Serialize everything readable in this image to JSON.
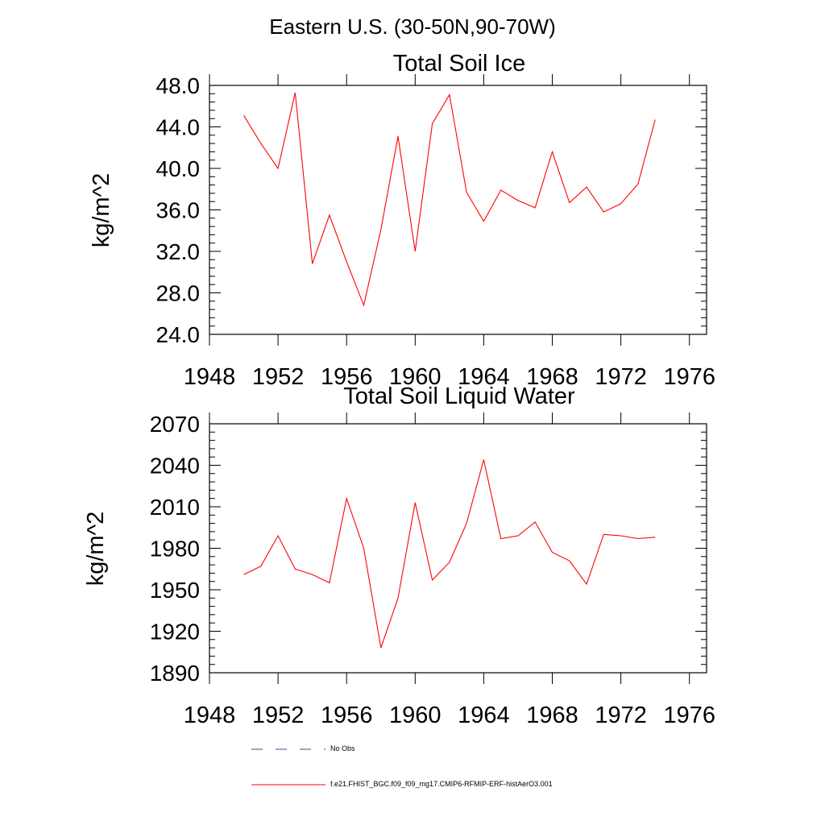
{
  "main_title": "Eastern U.S. (30-50N,90-70W)",
  "chart_data": [
    {
      "type": "line",
      "title": "Total Soil Ice",
      "ylabel": "kg/m^2",
      "xlabel": "",
      "xlim": [
        1948,
        1977
      ],
      "ylim": [
        24,
        48
      ],
      "xticks": [
        "1948",
        "1952",
        "1956",
        "1960",
        "1964",
        "1968",
        "1972",
        "1976"
      ],
      "xtick_values": [
        1948,
        1952,
        1956,
        1960,
        1964,
        1968,
        1972,
        1976
      ],
      "yticks": [
        "24.0",
        "28.0",
        "32.0",
        "36.0",
        "40.0",
        "44.0",
        "48.0"
      ],
      "ytick_values": [
        24,
        28,
        32,
        36,
        40,
        44,
        48
      ],
      "series": [
        {
          "name": "f.e21.FHIST_BGC.f09_f09_mg17.CMIP6-RFMIP-ERF-histAerO3.001",
          "color": "#ff0000",
          "x": [
            1950,
            1951,
            1952,
            1953,
            1954,
            1955,
            1956,
            1957,
            1958,
            1959,
            1960,
            1961,
            1962,
            1963,
            1964,
            1965,
            1966,
            1967,
            1968,
            1969,
            1970,
            1971,
            1972,
            1973,
            1974
          ],
          "values": [
            45.1,
            42.4,
            40.0,
            47.3,
            30.8,
            35.5,
            31.0,
            26.8,
            34.1,
            43.1,
            32.0,
            44.3,
            47.1,
            37.7,
            34.9,
            37.9,
            36.9,
            36.2,
            41.6,
            36.7,
            38.2,
            35.8,
            36.6,
            38.5,
            44.7
          ]
        }
      ]
    },
    {
      "type": "line",
      "title": "Total Soil Liquid Water",
      "ylabel": "kg/m^2",
      "xlabel": "",
      "xlim": [
        1948,
        1977
      ],
      "ylim": [
        1890,
        2070
      ],
      "xticks": [
        "1948",
        "1952",
        "1956",
        "1960",
        "1964",
        "1968",
        "1972",
        "1976"
      ],
      "xtick_values": [
        1948,
        1952,
        1956,
        1960,
        1964,
        1968,
        1972,
        1976
      ],
      "yticks": [
        "1890",
        "1920",
        "1950",
        "1980",
        "2010",
        "2040",
        "2070"
      ],
      "ytick_values": [
        1890,
        1920,
        1950,
        1980,
        2010,
        2040,
        2070
      ],
      "series": [
        {
          "name": "f.e21.FHIST_BGC.f09_f09_mg17.CMIP6-RFMIP-ERF-histAerO3.001",
          "color": "#ff0000",
          "x": [
            1950,
            1951,
            1952,
            1953,
            1954,
            1955,
            1956,
            1957,
            1958,
            1959,
            1960,
            1961,
            1962,
            1963,
            1964,
            1965,
            1966,
            1967,
            1968,
            1969,
            1970,
            1971,
            1972,
            1973,
            1974
          ],
          "values": [
            1961,
            1967,
            1989,
            1965,
            1961,
            1955,
            2016,
            1980,
            1908,
            1944,
            2013,
            1957,
            1970,
            1998,
            2044,
            1987,
            1989,
            1999,
            1977,
            1971,
            1954,
            1990,
            1989,
            1987,
            1988
          ]
        }
      ]
    }
  ],
  "legend": {
    "items": [
      {
        "label": "No Obs",
        "color": "#3a4a8c",
        "style": "dashed"
      },
      {
        "label": "f.e21.FHIST_BGC.f09_f09_mg17.CMIP6-RFMIP-ERF-histAerO3.001",
        "color": "#ff0000",
        "style": "solid"
      }
    ]
  }
}
